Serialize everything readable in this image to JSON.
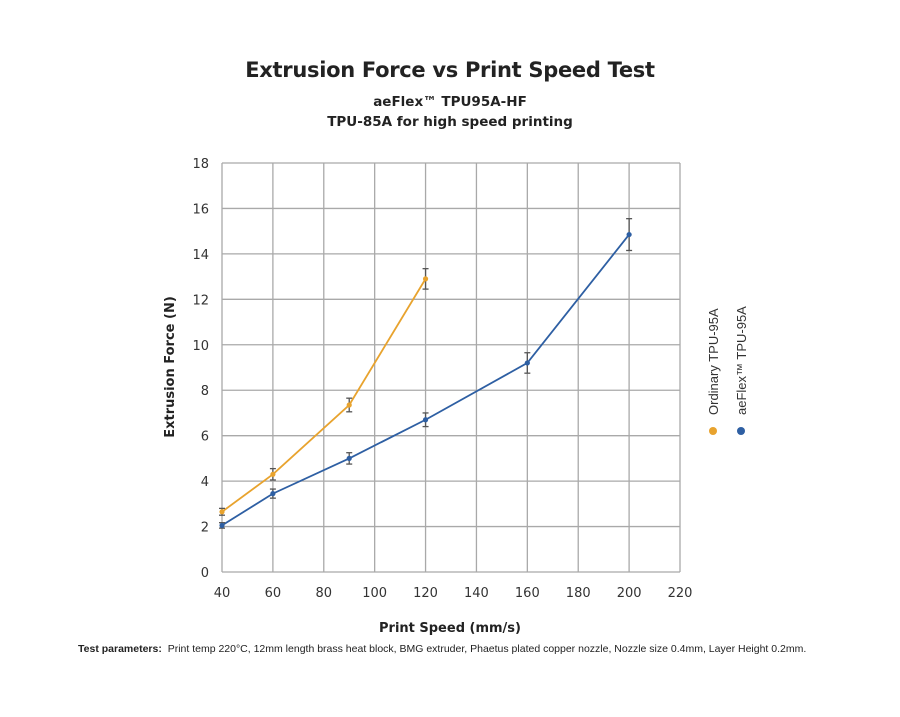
{
  "chart_data": {
    "type": "line",
    "title": "Extrusion Force vs Print Speed Test",
    "subtitle_lines": [
      "aeFlex™ TPU95A-HF",
      "TPU-85A for high speed printing"
    ],
    "xlabel": "Print Speed (mm/s)",
    "ylabel": "Extrusion Force (N)",
    "xlim": [
      40,
      220
    ],
    "ylim": [
      0,
      18
    ],
    "xticks": [
      40,
      60,
      80,
      100,
      120,
      140,
      160,
      180,
      200,
      220
    ],
    "yticks": [
      0,
      2,
      4,
      6,
      8,
      10,
      12,
      14,
      16,
      18
    ],
    "grid": true,
    "legend_position": "right (vertical)",
    "series": [
      {
        "name": "Ordinary TPU-95A",
        "color": "#E8A32E",
        "x": [
          40,
          60,
          90,
          120
        ],
        "y": [
          2.65,
          4.3,
          7.35,
          12.9
        ],
        "error": [
          0.15,
          0.25,
          0.3,
          0.45
        ]
      },
      {
        "name": "aeFlex™ TPU-95A",
        "color": "#2E5FA3",
        "x": [
          40,
          60,
          90,
          120,
          160,
          200
        ],
        "y": [
          2.05,
          3.45,
          5.0,
          6.7,
          9.2,
          14.85
        ],
        "error": [
          0.12,
          0.2,
          0.25,
          0.3,
          0.45,
          0.7
        ]
      }
    ]
  },
  "footer": {
    "label": "Test parameters:",
    "text": "Print temp 220°C, 12mm length brass heat block, BMG extruder, Phaetus plated copper nozzle, Nozzle size 0.4mm, Layer Height 0.2mm."
  }
}
